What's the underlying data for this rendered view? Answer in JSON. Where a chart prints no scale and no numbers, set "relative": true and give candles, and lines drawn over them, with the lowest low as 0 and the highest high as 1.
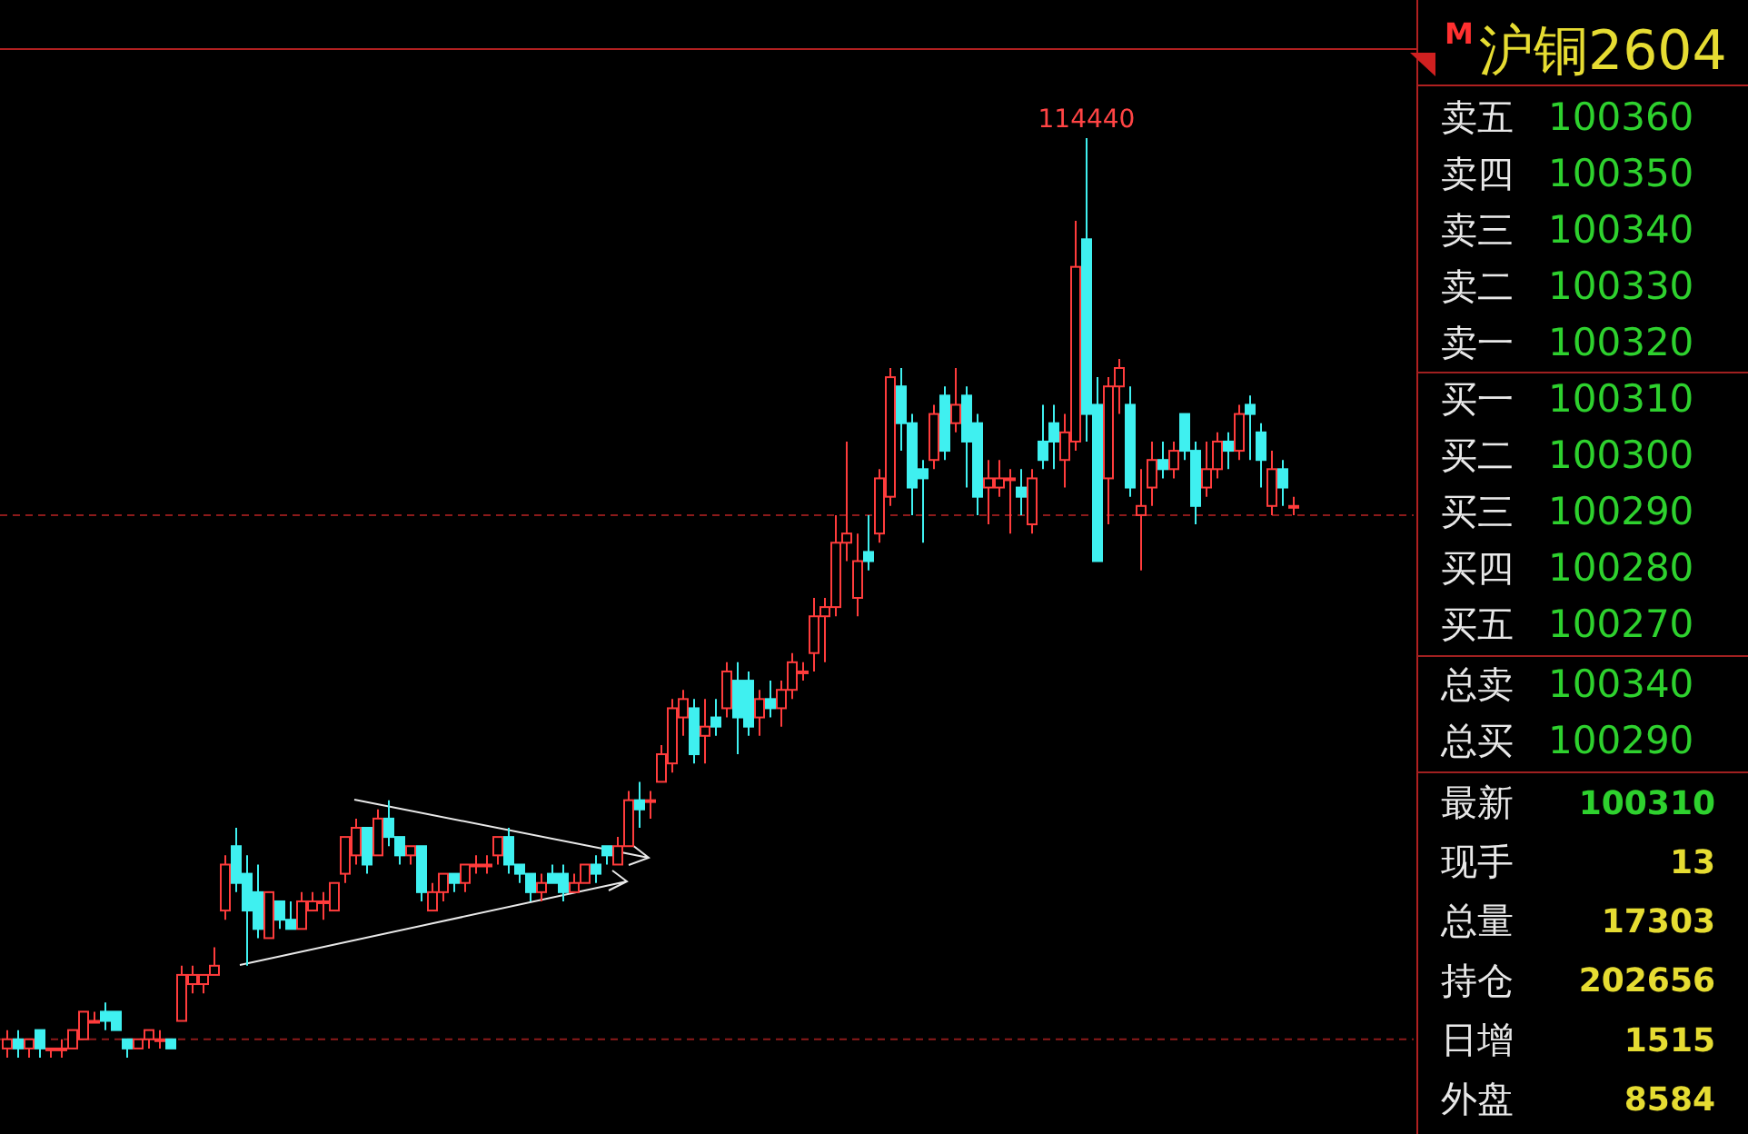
{
  "chart_data": [
    {
      "type": "candlestick",
      "relative": true,
      "categories": [
        null,
        null,
        null,
        null,
        null,
        null,
        null,
        null,
        null,
        null,
        null,
        null,
        null,
        null,
        null,
        null,
        null,
        null,
        null,
        null,
        null,
        null,
        null,
        null,
        null,
        null,
        null,
        null,
        null,
        null,
        null,
        null,
        null,
        null,
        null,
        null,
        null,
        null,
        null,
        null,
        null,
        null,
        null,
        null,
        null,
        null,
        null,
        null,
        null,
        null,
        null,
        null,
        null,
        null,
        null,
        null,
        null,
        null,
        null,
        null,
        null,
        null,
        null,
        null,
        null,
        null,
        null,
        null,
        null,
        null,
        null,
        null,
        null,
        null,
        null,
        null,
        null,
        null,
        null,
        null,
        null,
        null,
        null,
        null,
        null,
        null,
        null,
        null,
        null,
        null,
        null,
        null,
        null,
        null,
        null,
        null,
        null,
        null,
        null,
        null,
        null,
        null,
        null,
        null,
        null,
        null,
        null,
        null,
        null,
        null,
        null,
        null,
        null,
        null,
        null,
        null,
        null,
        null,
        null
      ],
      "ohlc": [
        [
          0.01,
          0.03,
          0.0,
          0.02
        ],
        [
          0.02,
          0.03,
          0.0,
          0.01
        ],
        [
          0.01,
          0.02,
          0.0,
          0.02
        ],
        [
          0.03,
          0.03,
          0,
          0.01
        ],
        [
          0.01,
          0.01,
          0.0,
          0.01
        ],
        [
          0.01,
          0.02,
          0.0,
          0.01
        ],
        [
          0.01,
          0.03,
          0.01,
          0.03
        ],
        [
          0.02,
          0.05,
          0.02,
          0.05
        ],
        [
          0.04,
          0.05,
          0.04,
          0.04
        ],
        [
          0.05,
          0.06,
          0.03,
          0.04
        ],
        [
          0.05,
          0.05,
          0.03,
          0.03
        ],
        [
          0.02,
          0.02,
          0.0,
          0.01
        ],
        [
          0.01,
          0.02,
          0.01,
          0.02
        ],
        [
          0.02,
          0.03,
          0.01,
          0.03
        ],
        [
          0.02,
          0.03,
          0.01,
          0.02
        ],
        [
          0.02,
          0.02,
          0.01,
          0.01
        ],
        [
          0.04,
          0.1,
          0.04,
          0.09
        ],
        [
          0.08,
          0.1,
          0.07,
          0.09
        ],
        [
          0.08,
          0.09,
          0.07,
          0.09
        ],
        [
          0.09,
          0.12,
          0.09,
          0.1
        ],
        [
          0.16,
          0.22,
          0.15,
          0.21
        ],
        [
          0.23,
          0.25,
          0.18,
          0.19
        ],
        [
          0.2,
          0.22,
          0.1,
          0.16
        ],
        [
          0.18,
          0.21,
          0.13,
          0.14
        ],
        [
          0.13,
          0.18,
          0.13,
          0.18
        ],
        [
          0.17,
          0.17,
          0.14,
          0.15
        ],
        [
          0.15,
          0.17,
          0.14,
          0.14
        ],
        [
          0.14,
          0.18,
          0.14,
          0.17
        ],
        [
          0.16,
          0.18,
          0.16,
          0.17
        ],
        [
          0.17,
          0.18,
          0.15,
          0.17
        ],
        [
          0.16,
          0.19,
          0.16,
          0.19
        ],
        [
          0.2,
          0.24,
          0.19,
          0.24
        ],
        [
          0.22,
          0.26,
          0.21,
          0.25
        ],
        [
          0.25,
          0.25,
          0.2,
          0.21
        ],
        [
          0.22,
          0.27,
          0.22,
          0.26
        ],
        [
          0.26,
          0.28,
          0.23,
          0.24
        ],
        [
          0.24,
          0.24,
          0.21,
          0.22
        ],
        [
          0.22,
          0.23,
          0.21,
          0.23
        ],
        [
          0.23,
          0.23,
          0.17,
          0.18
        ],
        [
          0.16,
          0.19,
          0.16,
          0.18
        ],
        [
          0.18,
          0.2,
          0.17,
          0.2
        ],
        [
          0.2,
          0.2,
          0.18,
          0.19
        ],
        [
          0.19,
          0.21,
          0.18,
          0.21
        ],
        [
          0.21,
          0.22,
          0.2,
          0.21
        ],
        [
          0.21,
          0.22,
          0.2,
          0.21
        ],
        [
          0.22,
          0.24,
          0.21,
          0.24
        ],
        [
          0.24,
          0.25,
          0.2,
          0.21
        ],
        [
          0.21,
          0.21,
          0.19,
          0.2
        ],
        [
          0.2,
          0.2,
          0.17,
          0.18
        ],
        [
          0.18,
          0.2,
          0.17,
          0.19
        ],
        [
          0.2,
          0.21,
          0.19,
          0.19
        ],
        [
          0.2,
          0.21,
          0.17,
          0.18
        ],
        [
          0.18,
          0.2,
          0.18,
          0.19
        ],
        [
          0.19,
          0.21,
          0.19,
          0.21
        ],
        [
          0.21,
          0.22,
          0.19,
          0.2
        ],
        [
          0.23,
          0.23,
          0.21,
          0.22
        ],
        [
          0.21,
          0.24,
          0.21,
          0.23
        ],
        [
          0.23,
          0.29,
          0.23,
          0.28
        ],
        [
          0.28,
          0.3,
          0.25,
          0.27
        ],
        [
          0.28,
          0.29,
          0.26,
          0.28
        ],
        [
          0.3,
          0.34,
          0.3,
          0.33
        ],
        [
          0.32,
          0.39,
          0.31,
          0.38
        ],
        [
          0.37,
          0.4,
          0.35,
          0.39
        ],
        [
          0.38,
          0.39,
          0.32,
          0.33
        ],
        [
          0.35,
          0.39,
          0.32,
          0.36
        ],
        [
          0.37,
          0.39,
          0.35,
          0.36
        ],
        [
          0.38,
          0.43,
          0.37,
          0.42
        ],
        [
          0.41,
          0.43,
          0.33,
          0.37
        ],
        [
          0.41,
          0.42,
          0.35,
          0.36
        ],
        [
          0.37,
          0.4,
          0.35,
          0.39
        ],
        [
          0.39,
          0.41,
          0.37,
          0.38
        ],
        [
          0.38,
          0.41,
          0.36,
          0.4
        ],
        [
          0.4,
          0.44,
          0.39,
          0.43
        ],
        [
          0.42,
          0.43,
          0.41,
          0.42
        ],
        [
          0.44,
          0.5,
          0.42,
          0.48
        ],
        [
          0.48,
          0.5,
          0.43,
          0.49
        ],
        [
          0.49,
          0.59,
          0.48,
          0.56
        ],
        [
          0.56,
          0.67,
          0.54,
          0.57
        ],
        [
          0.5,
          0.57,
          0.48,
          0.54
        ],
        [
          0.55,
          0.59,
          0.53,
          0.54
        ],
        [
          0.57,
          0.64,
          0.56,
          0.63
        ],
        [
          0.61,
          0.75,
          0.6,
          0.74
        ],
        [
          0.73,
          0.75,
          0.66,
          0.69
        ],
        [
          0.69,
          0.7,
          0.59,
          0.62
        ],
        [
          0.64,
          0.65,
          0.56,
          0.63
        ],
        [
          0.65,
          0.71,
          0.64,
          0.7
        ],
        [
          0.72,
          0.73,
          0.65,
          0.66
        ],
        [
          0.69,
          0.75,
          0.68,
          0.71
        ],
        [
          0.72,
          0.73,
          0.62,
          0.67
        ],
        [
          0.69,
          0.7,
          0.59,
          0.61
        ],
        [
          0.62,
          0.65,
          0.58,
          0.63
        ],
        [
          0.62,
          0.65,
          0.61,
          0.63
        ],
        [
          0.63,
          0.64,
          0.57,
          0.63
        ],
        [
          0.62,
          0.64,
          0.59,
          0.61
        ],
        [
          0.58,
          0.64,
          0.57,
          0.63
        ],
        [
          0.67,
          0.71,
          0.64,
          0.65
        ],
        [
          0.69,
          0.71,
          0.64,
          0.67
        ],
        [
          0.65,
          0.7,
          0.62,
          0.68
        ],
        [
          0.67,
          0.91,
          0.66,
          0.86
        ],
        [
          0.89,
          1,
          0.67,
          0.7
        ],
        [
          0.71,
          0.74,
          0.54,
          0.54
        ],
        [
          0.63,
          0.74,
          0.58,
          0.73
        ],
        [
          0.73,
          0.76,
          0.7,
          0.75
        ],
        [
          0.71,
          0.73,
          0.61,
          0.62
        ],
        [
          0.59,
          0.64,
          0.53,
          0.6
        ],
        [
          0.62,
          0.67,
          0.6,
          0.65
        ],
        [
          0.65,
          0.67,
          0.63,
          0.64
        ],
        [
          0.64,
          0.67,
          0.63,
          0.66
        ],
        [
          0.7,
          0.7,
          0.65,
          0.66
        ],
        [
          0.66,
          0.67,
          0.58,
          0.6
        ],
        [
          0.62,
          0.67,
          0.61,
          0.64
        ],
        [
          0.64,
          0.68,
          0.63,
          0.67
        ],
        [
          0.67,
          0.68,
          0.64,
          0.66
        ],
        [
          0.66,
          0.71,
          0.65,
          0.7
        ],
        [
          0.71,
          0.72,
          0.65,
          0.7
        ],
        [
          0.68,
          0.69,
          0.62,
          0.65
        ],
        [
          0.6,
          0.66,
          0.59,
          0.64
        ],
        [
          0.64,
          0.65,
          0.6,
          0.62
        ],
        [
          0.6,
          0.61,
          0.59,
          0.6
        ]
      ],
      "annotations": [
        {
          "text": "114440",
          "y": 1
        }
      ],
      "ref_lines": [
        {
          "axis": "y",
          "value": 0.59,
          "color": "#8c1a1a",
          "line_style": "dashed"
        },
        {
          "axis": "y",
          "value": 0.02,
          "color": "#8c1a1a",
          "line_style": "dashed"
        }
      ]
    },
    {
      "type": "other",
      "title": "沪铜2604",
      "annotations": [
        "M"
      ],
      "categories": [
        "卖五",
        "卖四",
        "卖三",
        "卖二",
        "卖一",
        "买一",
        "买二",
        "买三",
        "买四",
        "买五",
        "总卖",
        "总买",
        "最新",
        "现手",
        "总量",
        "持仓",
        "日增",
        "外盘"
      ],
      "values": [
        100360,
        100350,
        100340,
        100330,
        100320,
        100310,
        100300,
        100290,
        100280,
        100270,
        100340,
        100290,
        100310,
        13,
        17303,
        202656,
        1515,
        8584
      ],
      "colors": [
        "#2ed12e",
        "#2ed12e",
        "#2ed12e",
        "#2ed12e",
        "#2ed12e",
        "#2ed12e",
        "#2ed12e",
        "#2ed12e",
        "#2ed12e",
        "#2ed12e",
        "#2ed12e",
        "#2ed12e",
        "#2ed12e",
        "#e6dc32",
        "#e6dc32",
        "#e6dc32",
        "#e6dc32",
        "#e6dc32"
      ],
      "data_labels": true
    }
  ]
}
